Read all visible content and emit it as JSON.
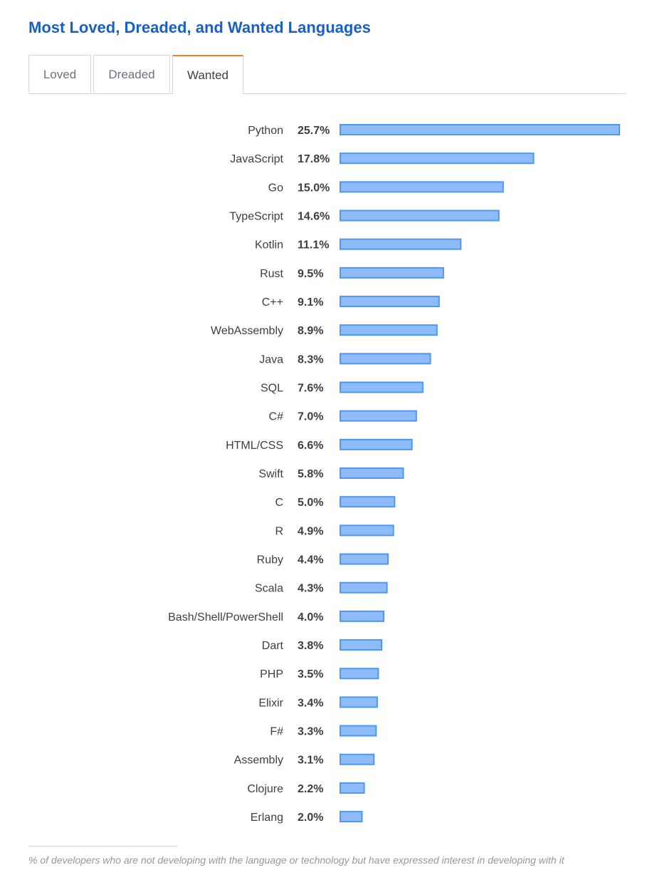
{
  "title": "Most Loved, Dreaded, and Wanted Languages",
  "tabs": [
    {
      "label": "Loved",
      "active": false
    },
    {
      "label": "Dreaded",
      "active": false
    },
    {
      "label": "Wanted",
      "active": true
    }
  ],
  "colors": {
    "title": "#1960c5",
    "bar_fill": "#8fbcf9",
    "bar_stroke": "#4d97f5",
    "tab_accent": "#f48024"
  },
  "chart_data": {
    "type": "bar",
    "orientation": "horizontal",
    "categories": [
      "Python",
      "JavaScript",
      "Go",
      "TypeScript",
      "Kotlin",
      "Rust",
      "C++",
      "WebAssembly",
      "Java",
      "SQL",
      "C#",
      "HTML/CSS",
      "Swift",
      "C",
      "R",
      "Ruby",
      "Scala",
      "Bash/Shell/PowerShell",
      "Dart",
      "PHP",
      "Elixir",
      "F#",
      "Assembly",
      "Clojure",
      "Erlang"
    ],
    "values": [
      25.7,
      17.8,
      15.0,
      14.6,
      11.1,
      9.5,
      9.1,
      8.9,
      8.3,
      7.6,
      7.0,
      6.6,
      5.8,
      5.0,
      4.9,
      4.4,
      4.3,
      4.0,
      3.8,
      3.5,
      3.4,
      3.3,
      3.1,
      2.2,
      2.0
    ],
    "value_labels": [
      "25.7%",
      "17.8%",
      "15.0%",
      "14.6%",
      "11.1%",
      "9.5%",
      "9.1%",
      "8.9%",
      "8.3%",
      "7.6%",
      "7.0%",
      "6.6%",
      "5.8%",
      "5.0%",
      "4.9%",
      "4.4%",
      "4.3%",
      "4.0%",
      "3.8%",
      "3.5%",
      "3.4%",
      "3.3%",
      "3.1%",
      "2.2%",
      "2.0%"
    ],
    "unit": "%",
    "xlim": [
      0,
      25.7
    ],
    "grid": false,
    "legend": "none"
  },
  "footnote": "% of developers who are not developing with the language or technology but have expressed interest in developing with it"
}
